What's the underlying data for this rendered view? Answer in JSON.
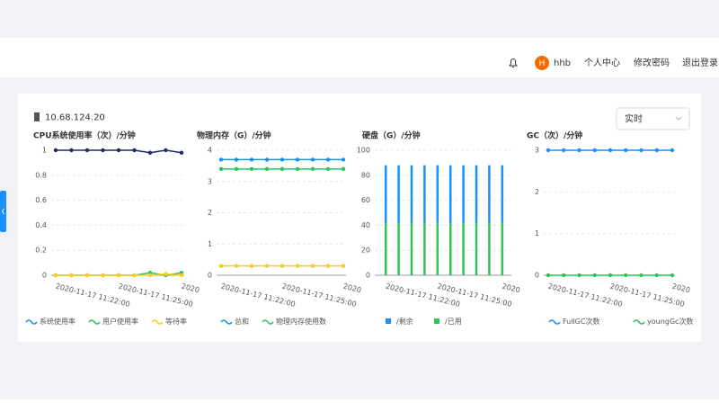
{
  "header": {
    "user_initial": "H",
    "user_name": "hhb",
    "menu": [
      "个人中心",
      "修改密码",
      "退出登录"
    ]
  },
  "panel": {
    "host": "10.68.124.20",
    "select": "实时"
  },
  "chart_data": [
    {
      "type": "line",
      "title": "CPU系统使用率（次）/分钟",
      "categories": [
        "2020-11-17 11:22:00",
        null,
        null,
        null,
        "2020-11-17 11:25:00",
        null,
        null,
        null,
        "2020"
      ],
      "ylim": [
        0,
        1
      ],
      "yticks": [
        0,
        0.2,
        0.4,
        0.6,
        0.8,
        1
      ],
      "grid": true,
      "series": [
        {
          "name": "系统使用率",
          "color": "#1e2c6e",
          "legend_color": "#1890ff",
          "values": [
            1,
            1,
            1,
            1,
            1,
            1,
            0.98,
            1,
            0.98
          ]
        },
        {
          "name": "用户使用率",
          "color": "#2fc25b",
          "values": [
            0,
            0,
            0,
            0,
            0,
            0,
            0.02,
            0,
            0.02
          ]
        },
        {
          "name": "等待率",
          "color": "#facc14",
          "values": [
            0,
            0,
            0,
            0,
            0,
            0,
            0,
            0.01,
            0
          ]
        }
      ]
    },
    {
      "type": "line",
      "title": "物理内存（G）/分钟",
      "categories": [
        "2020-11-17 11:22:00",
        null,
        null,
        null,
        "2020-11-17 11:25:00",
        null,
        null,
        null,
        "2020"
      ],
      "ylim": [
        0,
        4
      ],
      "yticks": [
        0,
        1,
        2,
        3,
        4
      ],
      "grid": true,
      "series": [
        {
          "name": "总和",
          "color": "#1890ff",
          "values": [
            3.7,
            3.7,
            3.7,
            3.7,
            3.7,
            3.7,
            3.7,
            3.7,
            3.7
          ]
        },
        {
          "name": "物理内存使用数",
          "color": "#2fc25b",
          "values": [
            3.4,
            3.4,
            3.4,
            3.4,
            3.4,
            3.4,
            3.4,
            3.4,
            3.4
          ]
        },
        {
          "color": "#facc14",
          "values": [
            0.3,
            0.3,
            0.3,
            0.3,
            0.3,
            0.3,
            0.3,
            0.3,
            0.3
          ]
        }
      ]
    },
    {
      "type": "bar",
      "title": "硬盘（G）/分钟",
      "categories": [
        "2020-11-17 11:22:00",
        null,
        null,
        null,
        "2020-11-17 11:25:00",
        null,
        null,
        null,
        null,
        "2020"
      ],
      "ylim": [
        0,
        100
      ],
      "yticks": [
        0,
        20,
        40,
        60,
        80,
        100
      ],
      "grid": true,
      "series": [
        {
          "name": "/已用",
          "color": "#2fc25b",
          "values": [
            42,
            42,
            42,
            42,
            42,
            42,
            42,
            42,
            42,
            42
          ]
        },
        {
          "name": "/剩余",
          "color": "#1890ff",
          "values": [
            46,
            46,
            46,
            46,
            46,
            46,
            46,
            46,
            46,
            46
          ]
        }
      ],
      "legend_order": [
        1,
        0
      ]
    },
    {
      "type": "line",
      "title": "GC（次）/分钟",
      "categories": [
        "2020-11-17 11:22:00",
        null,
        null,
        null,
        "2020-11-17 11:25:00",
        null,
        null,
        null,
        "2020"
      ],
      "ylim": [
        0,
        3
      ],
      "yticks": [
        0,
        1,
        2,
        3
      ],
      "grid": true,
      "series": [
        {
          "name": "FullGC次数",
          "color": "#1890ff",
          "values": [
            3,
            3,
            3,
            3,
            3,
            3,
            3,
            3,
            3
          ]
        },
        {
          "name": "youngGc次数",
          "color": "#2fc25b",
          "values": [
            0,
            0,
            0,
            0,
            0,
            0,
            0,
            0,
            0
          ]
        }
      ]
    }
  ]
}
